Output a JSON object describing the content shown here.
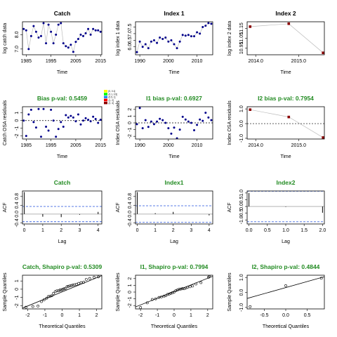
{
  "chart_data": [
    {
      "type": "scatter",
      "title": "Catch",
      "title_color": "#000000",
      "xlabel": "Time",
      "ylabel": "log catch data",
      "xlim": [
        1983.5,
        2015.5
      ],
      "ylim": [
        6.6,
        8.9
      ],
      "xticks": [
        1985,
        1995,
        2005,
        2015
      ],
      "yticks": [
        7.0,
        8.0
      ],
      "xtick_labels": [
        "1985",
        "1995",
        "2005",
        "2015"
      ],
      "ytick_labels": [
        "7.0",
        "8.0"
      ],
      "line": true,
      "zero_line": false,
      "marker": "filled-circle",
      "point_color": "#00008b",
      "legend": "none",
      "x": [
        1984,
        1985,
        1986,
        1987,
        1988,
        1989,
        1990,
        1991,
        1992,
        1993,
        1994,
        1995,
        1996,
        1997,
        1998,
        1999,
        2000,
        2001,
        2002,
        2003,
        2004,
        2005,
        2006,
        2007,
        2008,
        2009,
        2010,
        2011,
        2012,
        2013,
        2014,
        2015
      ],
      "y": [
        8.4,
        8.3,
        7.0,
        7.9,
        8.6,
        8.2,
        7.8,
        7.9,
        8.8,
        7.4,
        8.7,
        8.2,
        7.4,
        8.0,
        8.7,
        8.8,
        7.4,
        7.2,
        7.1,
        7.3,
        6.8,
        7.5,
        7.7,
        8.0,
        7.9,
        8.1,
        8.4,
        8.0,
        8.4,
        8.3,
        8.3,
        8.2
      ]
    },
    {
      "type": "scatter",
      "title": "Index 1",
      "title_color": "#000000",
      "xlabel": "Time",
      "ylabel": "log index 1 data",
      "xlim": [
        1988.5,
        2015.5
      ],
      "ylim": [
        5.4,
        7.9
      ],
      "xticks": [
        1990,
        2000,
        2010
      ],
      "yticks": [
        6.0,
        6.5,
        7.0,
        7.5
      ],
      "xtick_labels": [
        "1990",
        "2000",
        "2010"
      ],
      "ytick_labels": [
        "6.0",
        "6.5",
        "7.0",
        "7.5"
      ],
      "line": true,
      "zero_line": false,
      "marker": "filled-circle",
      "point_color": "#00008b",
      "legend": "none",
      "x": [
        1989,
        1990,
        1991,
        1992,
        1993,
        1994,
        1995,
        1996,
        1997,
        1998,
        1999,
        2000,
        2001,
        2002,
        2003,
        2004,
        2005,
        2006,
        2007,
        2008,
        2009,
        2010,
        2011,
        2012,
        2013,
        2014,
        2015
      ],
      "y": [
        5.6,
        6.4,
        6.0,
        6.2,
        5.9,
        6.4,
        6.5,
        6.3,
        6.7,
        6.6,
        6.7,
        6.4,
        6.5,
        6.2,
        5.9,
        6.4,
        6.9,
        6.85,
        6.9,
        6.8,
        6.8,
        7.1,
        7.0,
        7.5,
        7.6,
        7.8,
        7.75
      ]
    },
    {
      "type": "scatter",
      "title": "Index 2",
      "title_color": "#000000",
      "xlabel": "Time",
      "ylabel": "log index 2 data",
      "xlim": [
        2013.8,
        2015.6
      ],
      "ylim": [
        10.88,
        11.22
      ],
      "xticks": [
        2014.0,
        2015.0
      ],
      "yticks": [
        10.95,
        11.05,
        11.15
      ],
      "xtick_labels": [
        "2014.0",
        "2015.0"
      ],
      "ytick_labels": [
        "10.95",
        "11.05",
        "11.15"
      ],
      "line": true,
      "zero_line": false,
      "marker": "filled-square",
      "point_color": "#8b0000",
      "legend": "none",
      "x": [
        2013.87,
        2014.77,
        2015.57
      ],
      "y": [
        11.17,
        11.2,
        10.9
      ]
    },
    {
      "type": "scatter",
      "title": "Bias p-val: 0.5459",
      "title_color": "#228b22",
      "xlabel": "Time",
      "ylabel": "Catch OSA residuals",
      "xlim": [
        1983.5,
        2015.5
      ],
      "ylim": [
        -2.4,
        1.8
      ],
      "xticks": [
        1985,
        1995,
        2005,
        2015
      ],
      "yticks": [
        -2,
        -1,
        0,
        1
      ],
      "xtick_labels": [
        "1985",
        "1995",
        "2005",
        "2015"
      ],
      "ytick_labels": [
        "-2",
        "-1",
        "0",
        "1"
      ],
      "line": false,
      "zero_line": true,
      "marker": "filled-circle",
      "point_color": "#00008b",
      "legend": "top-right",
      "legend_entries": [
        "[0, 0.1]",
        "(0.1, 0.5]",
        "(0.5, 1]",
        "(1, 2]",
        "(2, 4]"
      ],
      "legend_colors": [
        "#ffff00",
        "#00ff00",
        "#1e90ff",
        "#ff0000",
        "#8b0000"
      ],
      "x": [
        1984,
        1985,
        1986,
        1987,
        1988,
        1989,
        1990,
        1991,
        1992,
        1993,
        1994,
        1995,
        1996,
        1997,
        1998,
        1999,
        2000,
        2001,
        2002,
        2003,
        2004,
        2005,
        2006,
        2007,
        2008,
        2009,
        2010,
        2011,
        2012,
        2013,
        2014,
        2015
      ],
      "y": [
        0.0,
        -2.0,
        0.8,
        1.4,
        -0.2,
        -0.9,
        1.5,
        -2.1,
        1.5,
        -0.8,
        -1.3,
        1.4,
        0.0,
        -2.1,
        -1.1,
        -0.2,
        -0.8,
        0.7,
        0.4,
        0.6,
        0.4,
        -0.1,
        0.8,
        -0.5,
        0.0,
        0.3,
        0.1,
        -0.1,
        0.5,
        0.2,
        -0.3,
        0.1
      ]
    },
    {
      "type": "scatter",
      "title": "I1 bias p-val: 0.6927",
      "title_color": "#228b22",
      "xlabel": "Time",
      "ylabel": "Index OSA residuals",
      "xlim": [
        1988.5,
        2015.5
      ],
      "ylim": [
        -2.4,
        2.4
      ],
      "xticks": [
        1990,
        2000,
        2010
      ],
      "yticks": [
        -2,
        -1,
        0,
        1,
        2
      ],
      "xtick_labels": [
        "1990",
        "2000",
        "2010"
      ],
      "ytick_labels": [
        "-2",
        "-1",
        "0",
        "1",
        "2"
      ],
      "line": false,
      "zero_line": true,
      "marker": "filled-circle",
      "point_color": "#00008b",
      "legend": "none",
      "x": [
        1989,
        1990,
        1991,
        1992,
        1993,
        1994,
        1995,
        1996,
        1997,
        1998,
        1999,
        2000,
        2001,
        2002,
        2003,
        2004,
        2005,
        2006,
        2007,
        2008,
        2009,
        2010,
        2011,
        2012,
        2013,
        2014,
        2015
      ],
      "y": [
        -0.2,
        2.2,
        -0.8,
        0.4,
        -0.6,
        0.2,
        -0.2,
        0.2,
        0.6,
        0.4,
        0.0,
        -0.8,
        -1.6,
        -0.7,
        -2.3,
        -1.0,
        0.9,
        0.5,
        0.2,
        0.0,
        -1.1,
        -0.3,
        0.5,
        0.3,
        1.5,
        0.8,
        0.4
      ]
    },
    {
      "type": "scatter",
      "title": "I2 bias p-val: 0.7954",
      "title_color": "#228b22",
      "xlabel": "Time",
      "ylabel": "Index OSA residuals",
      "xlim": [
        2013.8,
        2015.6
      ],
      "ylim": [
        -1.05,
        1.15
      ],
      "xticks": [
        2014.0,
        2015.0
      ],
      "yticks": [
        -1.0,
        0.0,
        1.0
      ],
      "xtick_labels": [
        "2014.0",
        "2015.0"
      ],
      "ytick_labels": [
        "-1.0",
        "0.0",
        "1.0"
      ],
      "line": true,
      "zero_line": true,
      "marker": "filled-square",
      "point_color": "#8b0000",
      "legend": "none",
      "x": [
        2013.87,
        2014.77,
        2015.57
      ],
      "y": [
        0.95,
        0.45,
        -0.95
      ]
    },
    {
      "type": "bar",
      "title": "Catch",
      "title_color": "#228b22",
      "xlabel": "Lag",
      "ylabel": "ACF",
      "xlim": [
        -0.1,
        4.2
      ],
      "ylim": [
        -0.45,
        1.05
      ],
      "xticks": [
        0,
        1,
        2,
        3,
        4
      ],
      "yticks": [
        -0.4,
        0.0,
        0.4,
        0.8
      ],
      "xtick_labels": [
        "0",
        "1",
        "2",
        "3",
        "4"
      ],
      "ytick_labels": [
        "-0.4",
        "0.0",
        "0.4",
        "0.8"
      ],
      "lags": [
        0,
        1,
        2,
        3,
        4
      ],
      "acf": [
        1.0,
        -0.12,
        -0.14,
        -0.03,
        0.1
      ],
      "ci": 0.3464,
      "ci_color": "#4169e1",
      "legend": "none"
    },
    {
      "type": "bar",
      "title": "Index1",
      "title_color": "#228b22",
      "xlabel": "Lag",
      "ylabel": "ACF",
      "xlim": [
        -0.1,
        4.2
      ],
      "ylim": [
        -0.45,
        1.05
      ],
      "xticks": [
        0,
        1,
        2,
        3,
        4
      ],
      "yticks": [
        -0.4,
        0.0,
        0.4,
        0.8
      ],
      "xtick_labels": [
        "0",
        "1",
        "2",
        "3",
        "4"
      ],
      "ytick_labels": [
        "-0.4",
        "0.0",
        "0.4",
        "0.8"
      ],
      "lags": [
        0,
        1,
        2,
        3,
        4
      ],
      "acf": [
        1.0,
        0.04,
        0.1,
        0.0,
        -0.06
      ],
      "ci": 0.3772,
      "ci_color": "#4169e1",
      "legend": "none"
    },
    {
      "type": "bar",
      "title": "Index2",
      "title_color": "#228b22",
      "xlabel": "Lag",
      "ylabel": "ACF",
      "xlim": [
        -0.05,
        2.05
      ],
      "ylim": [
        -1.3,
        1.15
      ],
      "xticks": [
        0.0,
        0.5,
        1.0,
        1.5,
        2.0
      ],
      "yticks": [
        -1.0,
        -0.5,
        0.0,
        0.5,
        1.0
      ],
      "xtick_labels": [
        "0.0",
        "0.5",
        "1.0",
        "1.5",
        "2.0"
      ],
      "ytick_labels": [
        "-1.0",
        "-0.5",
        "0.0",
        "0.5",
        "1.0"
      ],
      "lags": [
        0,
        1,
        2
      ],
      "acf": [
        1.0,
        -0.03,
        -0.47
      ],
      "ci": 1.1316,
      "ci_color": "#4169e1",
      "legend": "none"
    },
    {
      "type": "qq",
      "title": "Catch, Shapiro p-val: 0.5309",
      "title_color": "#228b22",
      "xlabel": "Theoretical Quantiles",
      "ylabel": "Sample Quantiles",
      "xlim": [
        -2.3,
        2.3
      ],
      "ylim": [
        -2.4,
        1.7
      ],
      "xticks": [
        -2,
        -1,
        0,
        1,
        2
      ],
      "yticks": [
        -2,
        -1,
        0,
        1
      ],
      "xtick_labels": [
        "-2",
        "-1",
        "0",
        "1",
        "2"
      ],
      "ytick_labels": [
        "-2",
        "-1",
        "0",
        "1"
      ],
      "ref_line": [
        [
          -2.3,
          -2.3
        ],
        [
          2.3,
          1.65
        ]
      ],
      "marker": "open-circle",
      "legend": "none",
      "x": [
        -2.1,
        -1.7,
        -1.4,
        -1.2,
        -1.05,
        -0.9,
        -0.8,
        -0.7,
        -0.6,
        -0.5,
        -0.4,
        -0.3,
        -0.2,
        -0.12,
        -0.04,
        0.04,
        0.12,
        0.2,
        0.28,
        0.36,
        0.45,
        0.54,
        0.63,
        0.73,
        0.84,
        0.96,
        1.1,
        1.25,
        1.4,
        1.6,
        1.85,
        2.1
      ],
      "y": [
        -2.2,
        -2.1,
        -2.05,
        -1.5,
        -1.3,
        -1.1,
        -0.9,
        -0.85,
        -0.8,
        -0.5,
        -0.3,
        -0.2,
        -0.2,
        -0.1,
        -0.1,
        0.0,
        0.05,
        0.1,
        0.3,
        0.35,
        0.4,
        0.45,
        0.5,
        0.55,
        0.6,
        0.7,
        0.8,
        0.85,
        1.2,
        1.3,
        1.45,
        1.5
      ]
    },
    {
      "type": "qq",
      "title": "I1, Shapiro p-val: 0.7994",
      "title_color": "#228b22",
      "xlabel": "Theoretical Quantiles",
      "ylabel": "Sample Quantiles",
      "xlim": [
        -2.3,
        2.3
      ],
      "ylim": [
        -2.5,
        2.5
      ],
      "xticks": [
        -2,
        -1,
        0,
        1,
        2
      ],
      "yticks": [
        -2,
        -1,
        0,
        1,
        2
      ],
      "xtick_labels": [
        "-2",
        "-1",
        "0",
        "1",
        "2"
      ],
      "ytick_labels": [
        "-2",
        "-1",
        "0",
        "1",
        "2"
      ],
      "ref_line": [
        [
          -2.3,
          -2.2
        ],
        [
          2.3,
          2.35
        ]
      ],
      "marker": "open-circle",
      "legend": "none",
      "x": [
        -2.0,
        -1.6,
        -1.3,
        -1.1,
        -0.9,
        -0.75,
        -0.6,
        -0.5,
        -0.4,
        -0.3,
        -0.2,
        -0.1,
        0.0,
        0.1,
        0.2,
        0.3,
        0.4,
        0.5,
        0.6,
        0.7,
        0.8,
        0.95,
        1.1,
        1.3,
        1.6,
        2.05,
        2.1
      ],
      "y": [
        -2.3,
        -1.6,
        -1.1,
        -1.0,
        -0.8,
        -0.7,
        -0.6,
        -0.55,
        -0.35,
        -0.3,
        -0.2,
        -0.1,
        0.0,
        0.2,
        0.3,
        0.4,
        0.45,
        0.5,
        0.5,
        0.6,
        0.7,
        0.8,
        0.9,
        1.2,
        1.4,
        2.2,
        2.3
      ]
    },
    {
      "type": "qq",
      "title": "I2, Shapiro p-val: 0.4844",
      "title_color": "#228b22",
      "xlabel": "Theoretical Quantiles",
      "ylabel": "Sample Quantiles",
      "xlim": [
        -0.9,
        0.9
      ],
      "ylim": [
        -1.1,
        1.15
      ],
      "xticks": [
        -0.5,
        0.0,
        0.5
      ],
      "yticks": [
        -1.0,
        0.0,
        1.0
      ],
      "xtick_labels": [
        "-0.5",
        "0.0",
        "0.5"
      ],
      "ytick_labels": [
        "-1.0",
        "0.0",
        "1.0"
      ],
      "ref_line": [
        [
          -0.9,
          -0.4
        ],
        [
          0.9,
          1.05
        ]
      ],
      "marker": "open-circle",
      "legend": "none",
      "x": [
        -0.83,
        0.0,
        0.83
      ],
      "y": [
        -0.95,
        0.45,
        0.95
      ]
    }
  ]
}
